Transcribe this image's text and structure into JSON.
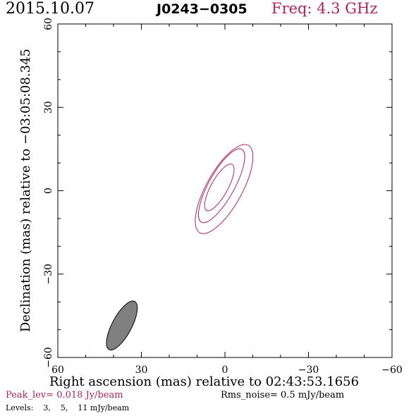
{
  "header": {
    "date": "2015.10.07",
    "source": "J0243−0305",
    "freq": "Freq: 4.3 GHz"
  },
  "colors": {
    "accent": "#b0245a",
    "beam_fill": "#808080",
    "frame": "#000000"
  },
  "footer": {
    "peak": "Peak_lev=  0.018 Jy/beam",
    "rms": "Rms_noise=  0.5 mJy/beam",
    "levels_label": "Levels:",
    "levels": [
      "3,",
      "5,",
      "11 mJy/beam"
    ]
  },
  "chart_data": {
    "type": "contour",
    "xlabel": "Right ascension (mas) relative to 02:43:53.1656",
    "ylabel": "Declination (mas) relative to −03:05:08.345",
    "xlim": [
      60,
      -60
    ],
    "ylim": [
      -60,
      60
    ],
    "x_ticks": [
      60,
      30,
      0,
      -30,
      -60
    ],
    "x_tick_labels": [
      "60",
      "30",
      "0",
      "−30",
      "−60"
    ],
    "y_ticks": [
      -60,
      -30,
      0,
      30,
      60
    ],
    "y_tick_labels": [
      "−60",
      "−30",
      "0",
      "30",
      "60"
    ],
    "contour_levels_mJy": [
      3,
      5,
      11
    ],
    "contours": [
      {
        "level": 3,
        "center": [
          0.3,
          0.6
        ],
        "semi_major": 18,
        "semi_minor": 6.4,
        "pa_deg": 29
      },
      {
        "level": 5,
        "center": [
          1.2,
          1.8
        ],
        "semi_major": 15,
        "semi_minor": 4.6,
        "pa_deg": 29
      },
      {
        "level": 11,
        "center": [
          2.0,
          1.2
        ],
        "semi_major": 9.5,
        "semi_minor": 3.0,
        "pa_deg": 29
      }
    ],
    "beam": {
      "center": [
        37,
        -48.5
      ],
      "semi_major": 9.8,
      "semi_minor": 3.5,
      "pa_deg": 28
    }
  }
}
